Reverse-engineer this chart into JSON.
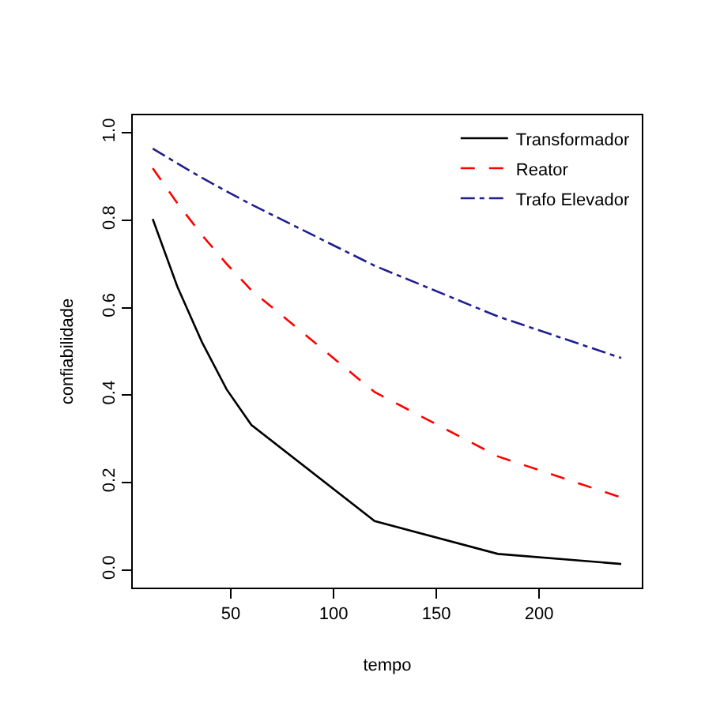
{
  "chart_data": {
    "type": "line",
    "xlabel": "tempo",
    "ylabel": "confiabilidade",
    "x": [
      12,
      24,
      36,
      48,
      60,
      120,
      180,
      240
    ],
    "series": [
      {
        "name": "Transformador",
        "color": "#000000",
        "line_style": "solid",
        "values": [
          0.803,
          0.648,
          0.521,
          0.413,
          0.332,
          0.112,
          0.037,
          0.014
        ]
      },
      {
        "name": "Reator",
        "color": "#ff0000",
        "line_style": "dashed",
        "values": [
          0.919,
          0.839,
          0.766,
          0.7,
          0.64,
          0.407,
          0.26,
          0.166
        ]
      },
      {
        "name": "Trafo Elevador",
        "color": "#1f1f8f",
        "line_style": "dashdot",
        "values": [
          0.964,
          0.93,
          0.897,
          0.866,
          0.836,
          0.696,
          0.58,
          0.485
        ]
      }
    ],
    "xlim": [
      2.3,
      250
    ],
    "xticks": [
      50,
      100,
      150,
      200
    ],
    "ylim": [
      -0.04,
      1.04
    ],
    "yticks": [
      {
        "value": 0,
        "label": "0.0"
      },
      {
        "value": 0.2,
        "label": "0.2"
      },
      {
        "value": 0.4,
        "label": "0.4"
      },
      {
        "value": 0.6,
        "label": "0.6"
      },
      {
        "value": 0.8,
        "label": "0.8"
      },
      {
        "value": 1.0,
        "label": "1.0"
      }
    ],
    "legend": "top right",
    "marker": "none"
  }
}
